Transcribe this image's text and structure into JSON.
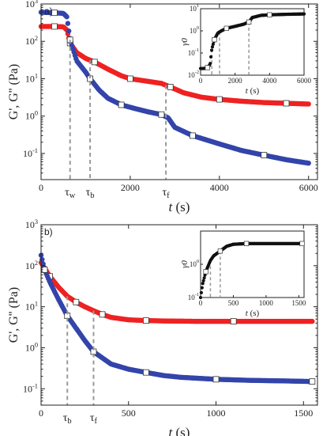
{
  "colors": {
    "gprime": "#ee2222",
    "gdouble": "#3344aa",
    "strain": "#111111",
    "guide": "#999999"
  },
  "chart_data": [
    {
      "type": "scatter",
      "panel": "a)",
      "xlabel": "t",
      "xunit": "(s)",
      "ylabel": "G', G'' (Pa)",
      "xlim": [
        0,
        6200
      ],
      "ylim_log10": [
        -1.7,
        3
      ],
      "yscale": "log",
      "x_ticks": [
        0,
        2000,
        4000,
        6000
      ],
      "x_tick_labels": [
        "0",
        "2000",
        "4000",
        "6000"
      ],
      "y_ticks_exp": [
        -1,
        0,
        1,
        2,
        3
      ],
      "markers": [
        {
          "name": "τw",
          "sub": "w",
          "x": 650
        },
        {
          "name": "τb",
          "sub": "b",
          "x": 1100
        },
        {
          "name": "τf",
          "sub": "f",
          "x": 2800
        }
      ],
      "series": [
        {
          "color_key": "gprime",
          "points": [
            [
              0,
              250
            ],
            [
              300,
              250
            ],
            [
              500,
              245
            ],
            [
              580,
              200
            ],
            [
              650,
              90
            ],
            [
              800,
              50
            ],
            [
              1000,
              35
            ],
            [
              1200,
              28
            ],
            [
              1500,
              18
            ],
            [
              1800,
              12
            ],
            [
              2000,
              10
            ],
            [
              2400,
              8.5
            ],
            [
              2700,
              7.5
            ],
            [
              2900,
              6
            ],
            [
              3200,
              4.2
            ],
            [
              3600,
              3.2
            ],
            [
              4000,
              2.8
            ],
            [
              4500,
              2.5
            ],
            [
              5000,
              2.3
            ],
            [
              5500,
              2.2
            ],
            [
              6000,
              2.1
            ]
          ]
        },
        {
          "color_key": "gdouble",
          "points": [
            [
              0,
              600
            ],
            [
              300,
              580
            ],
            [
              500,
              560
            ],
            [
              580,
              450
            ],
            [
              650,
              110
            ],
            [
              800,
              30
            ],
            [
              1000,
              15
            ],
            [
              1100,
              10
            ],
            [
              1300,
              5
            ],
            [
              1500,
              3
            ],
            [
              1800,
              2
            ],
            [
              2100,
              1.6
            ],
            [
              2400,
              1.3
            ],
            [
              2700,
              1.1
            ],
            [
              2850,
              0.9
            ],
            [
              3000,
              0.5
            ],
            [
              3400,
              0.3
            ],
            [
              4000,
              0.18
            ],
            [
              4500,
              0.12
            ],
            [
              5000,
              0.09
            ],
            [
              5500,
              0.068
            ],
            [
              6000,
              0.055
            ]
          ]
        }
      ],
      "inset": {
        "type": "line",
        "xlabel": "t",
        "xunit": "(s)",
        "ylabel": "γ0",
        "xlim": [
          0,
          6000
        ],
        "ylim_log10": [
          -2,
          1
        ],
        "x_ticks": [
          0,
          2000,
          4000,
          6000
        ],
        "x_tick_labels": [
          "0",
          "2000",
          "4000",
          "6000"
        ],
        "y_ticks_exp": [
          -2,
          -1,
          0,
          1
        ],
        "markers_x": [
          650,
          1100,
          2800
        ],
        "series": {
          "color_key": "strain",
          "points": [
            [
              0,
              0.02
            ],
            [
              200,
              0.02
            ],
            [
              400,
              0.022
            ],
            [
              550,
              0.03
            ],
            [
              650,
              0.15
            ],
            [
              800,
              0.4
            ],
            [
              1000,
              0.8
            ],
            [
              1200,
              1
            ],
            [
              1500,
              1.3
            ],
            [
              2000,
              1.6
            ],
            [
              2500,
              2
            ],
            [
              2800,
              2.5
            ],
            [
              3000,
              4
            ],
            [
              3500,
              5
            ],
            [
              4000,
              5.3
            ],
            [
              5000,
              5.6
            ],
            [
              6000,
              5.8
            ]
          ]
        }
      }
    },
    {
      "type": "scatter",
      "panel": "b)",
      "xlabel": "t",
      "xunit": "(s)",
      "ylabel": "G', G'' (Pa)",
      "xlim": [
        0,
        1580
      ],
      "ylim_log10": [
        -1.4,
        3
      ],
      "yscale": "log",
      "x_ticks": [
        0,
        500,
        1000,
        1500
      ],
      "x_tick_labels": [
        "0",
        "500",
        "1000",
        "1500"
      ],
      "y_ticks_exp": [
        -1,
        0,
        1,
        2,
        3
      ],
      "markers": [
        {
          "name": "τb",
          "sub": "b",
          "x": 150
        },
        {
          "name": "τf",
          "sub": "f",
          "x": 300
        }
      ],
      "series": [
        {
          "color_key": "gprime",
          "points": [
            [
              0,
              120
            ],
            [
              50,
              55
            ],
            [
              100,
              30
            ],
            [
              150,
              18
            ],
            [
              200,
              13
            ],
            [
              250,
              10
            ],
            [
              300,
              8
            ],
            [
              350,
              6.5
            ],
            [
              400,
              5.5
            ],
            [
              500,
              4.8
            ],
            [
              600,
              4.6
            ],
            [
              700,
              4.5
            ],
            [
              900,
              4.4
            ],
            [
              1100,
              4.4
            ],
            [
              1300,
              4.4
            ],
            [
              1550,
              4.4
            ]
          ]
        },
        {
          "color_key": "gdouble",
          "points": [
            [
              0,
              180
            ],
            [
              20,
              80
            ],
            [
              50,
              40
            ],
            [
              100,
              15
            ],
            [
              150,
              6
            ],
            [
              200,
              3
            ],
            [
              250,
              1.5
            ],
            [
              300,
              0.8
            ],
            [
              400,
              0.4
            ],
            [
              500,
              0.3
            ],
            [
              600,
              0.25
            ],
            [
              700,
              0.21
            ],
            [
              800,
              0.19
            ],
            [
              1000,
              0.17
            ],
            [
              1200,
              0.16
            ],
            [
              1400,
              0.155
            ],
            [
              1550,
              0.15
            ]
          ]
        }
      ],
      "inset": {
        "type": "line",
        "xlabel": "t",
        "xunit": "(s)",
        "ylabel": "γ0",
        "xlim": [
          0,
          1580
        ],
        "ylim_log10": [
          -1,
          1
        ],
        "x_ticks": [
          0,
          500,
          1000,
          1500
        ],
        "x_tick_labels": [
          "0",
          "500",
          "1000",
          "1500"
        ],
        "y_ticks_exp": [
          -1,
          0
        ],
        "markers_x": [
          150,
          300
        ],
        "series": {
          "color_key": "strain",
          "points": [
            [
              0,
              0.1
            ],
            [
              30,
              0.25
            ],
            [
              80,
              0.6
            ],
            [
              150,
              1.3
            ],
            [
              200,
              1.8
            ],
            [
              300,
              2.5
            ],
            [
              400,
              3.5
            ],
            [
              500,
              4
            ],
            [
              700,
              4.2
            ],
            [
              1000,
              4.2
            ],
            [
              1300,
              4.2
            ],
            [
              1550,
              4.2
            ]
          ]
        }
      }
    }
  ]
}
